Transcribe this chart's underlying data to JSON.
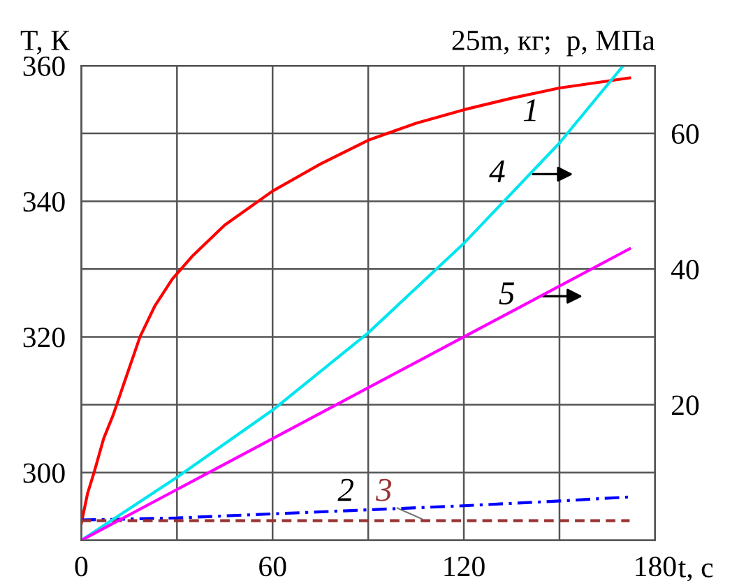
{
  "chart_data": {
    "type": "line",
    "xlabel": "t, с",
    "ylabel": "T, К",
    "y2label": "25m, кг;  p, МПа",
    "series": [
      {
        "name": "1",
        "color": "#ff0000",
        "x": [
          0,
          2,
          4,
          7,
          10,
          14,
          18.4,
          23,
          28.5,
          35,
          45,
          60,
          75,
          90,
          105,
          120,
          135,
          150,
          172
        ],
        "values": [
          292.5,
          297,
          300,
          305,
          308.5,
          314,
          320,
          324.5,
          328.5,
          332,
          336.5,
          341.5,
          345.5,
          349,
          351.5,
          353.5,
          355.2,
          356.7,
          358.2
        ]
      },
      {
        "name": "2",
        "color": "#0000ff",
        "axis": "y2",
        "line_style": "dashdot",
        "x": [
          0,
          30,
          60,
          90,
          120,
          150,
          172
        ],
        "values": [
          3,
          3.3,
          3.9,
          4.5,
          5.1,
          5.8,
          6.4
        ]
      },
      {
        "name": "3",
        "color": "#993333",
        "axis": "y2",
        "line_style": "dashed",
        "x": [
          0,
          172
        ],
        "values": [
          2.9,
          2.9
        ]
      },
      {
        "name": "4",
        "color": "#00e5ee",
        "axis": "y2",
        "x": [
          0,
          30,
          60,
          90,
          120,
          150,
          170
        ],
        "values": [
          0,
          9.3,
          19.2,
          30.6,
          43.8,
          58.6,
          70
        ]
      },
      {
        "name": "5",
        "color": "#ff00ff",
        "axis": "y2",
        "x": [
          0,
          60,
          120,
          172
        ],
        "values": [
          0,
          15,
          30,
          43
        ]
      }
    ],
    "xlim": [
      0,
      180
    ],
    "xticks": [
      0,
      {
        "value": 30,
        "label": null
      },
      60,
      {
        "value": 90,
        "label": null
      },
      120,
      {
        "value": 150,
        "label": null
      },
      180
    ],
    "ylim": [
      290,
      360
    ],
    "yticks": [
      {
        "value": 290,
        "label": null
      },
      300,
      {
        "value": 310,
        "label": null
      },
      320,
      {
        "value": 330,
        "label": null
      },
      340,
      {
        "value": 350,
        "label": null
      },
      360
    ],
    "y2lim": [
      0,
      70
    ],
    "y2ticks": [
      20,
      40,
      60
    ],
    "grid": true,
    "legend": false
  }
}
